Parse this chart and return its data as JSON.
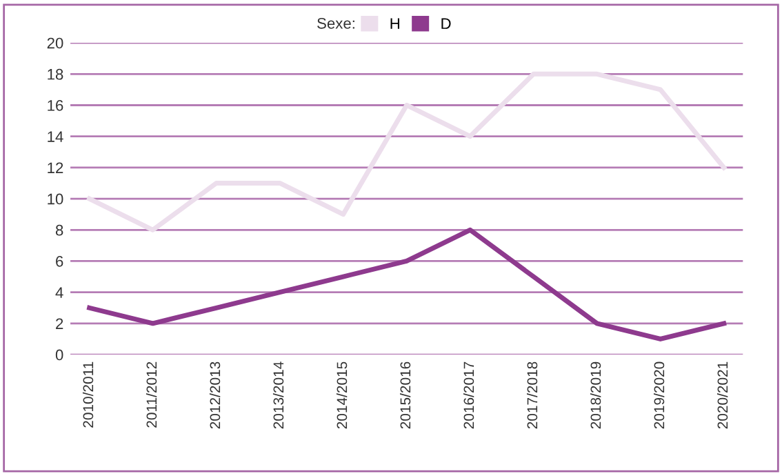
{
  "chart_data": {
    "type": "line",
    "legend_title": "Sexe:",
    "categories": [
      "2010/2011",
      "2011/2012",
      "2012/2013",
      "2013/2014",
      "2014/2015",
      "2015/2016",
      "2016/2017",
      "2017/2018",
      "2018/2019",
      "2019/2020",
      "2020/2021"
    ],
    "series": [
      {
        "name": "H",
        "color": "#ecdeec",
        "values": [
          10,
          8,
          11,
          11,
          9,
          16,
          14,
          18,
          18,
          17,
          12
        ]
      },
      {
        "name": "D",
        "color": "#8e3a8e",
        "values": [
          3,
          2,
          3,
          4,
          5,
          6,
          8,
          5,
          2,
          1,
          2
        ]
      }
    ],
    "ylim": [
      0,
      20
    ],
    "yticks": [
      0,
      2,
      4,
      6,
      8,
      10,
      12,
      14,
      16,
      18,
      20
    ],
    "grid": "y",
    "legend": "top",
    "marker": "none",
    "line_style": "solid"
  }
}
